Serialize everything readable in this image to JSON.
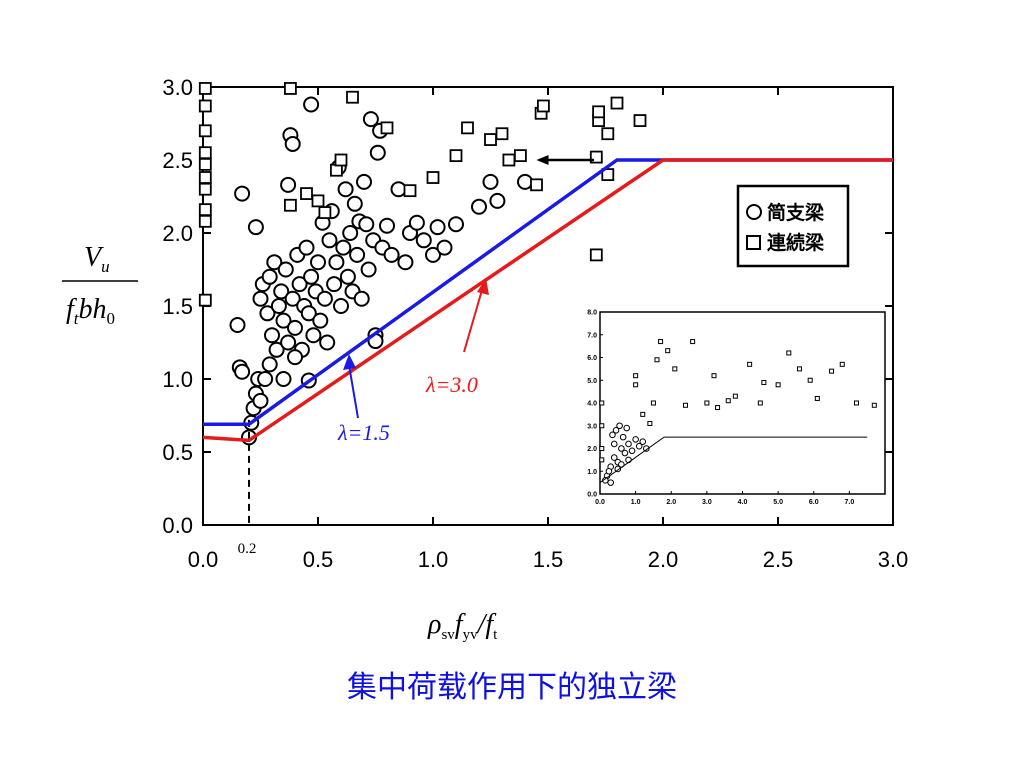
{
  "caption": "集中荷载作用下的独立梁",
  "chart_data": {
    "type": "scatter",
    "xlim": [
      0,
      3.0
    ],
    "ylim": [
      0,
      3.0
    ],
    "x_ticks": [
      "0.0",
      "0.5",
      "1.0",
      "1.5",
      "2.0",
      "2.5",
      "3.0"
    ],
    "y_ticks": [
      "0.0",
      "0.5",
      "1.0",
      "1.5",
      "2.0",
      "2.5",
      "3.0"
    ],
    "x_extra_tick": "0.2",
    "ylabel": {
      "num_main": "V",
      "num_sub": "u",
      "den_f": "f",
      "den_t": "t",
      "den_bh": "bh",
      "den_0": "0"
    },
    "xlabel": {
      "rho": "ρ",
      "sv": "sv",
      "f1": "f",
      "yv": "yv",
      "slash": "/",
      "f2": "f",
      "t": "t"
    },
    "legend": [
      {
        "marker": "circle",
        "label": "简支梁"
      },
      {
        "marker": "square",
        "label": "連続梁"
      }
    ],
    "legend_position": "right",
    "lines": [
      {
        "label": "λ=1.5",
        "color": "#1a1ae6",
        "points": [
          [
            0,
            0.69
          ],
          [
            0.2,
            0.69
          ],
          [
            1.8,
            2.5
          ],
          [
            3.0,
            2.5
          ]
        ]
      },
      {
        "label": "λ=3.0",
        "color": "#e61a1a",
        "points": [
          [
            0,
            0.6
          ],
          [
            0.2,
            0.58
          ],
          [
            2.0,
            2.5
          ],
          [
            3.0,
            2.5
          ]
        ]
      }
    ],
    "line_labels": [
      {
        "text": "λ=1.5",
        "ref": "λ=1.5"
      },
      {
        "text": "λ=3.0",
        "ref": "λ=3.0"
      }
    ],
    "arrow_level": 2.5,
    "arrow_from_x": 1.7,
    "arrow_to_x": 1.45,
    "dashed_vertical_x": 0.2,
    "series": [
      {
        "marker": "circle",
        "points": [
          [
            0.15,
            1.37
          ],
          [
            0.17,
            2.27
          ],
          [
            0.23,
            2.04
          ],
          [
            0.25,
            1.55
          ],
          [
            0.26,
            1.65
          ],
          [
            0.28,
            1.45
          ],
          [
            0.29,
            1.7
          ],
          [
            0.3,
            1.3
          ],
          [
            0.31,
            1.8
          ],
          [
            0.32,
            1.2
          ],
          [
            0.33,
            1.5
          ],
          [
            0.34,
            1.6
          ],
          [
            0.35,
            1.4
          ],
          [
            0.36,
            1.75
          ],
          [
            0.37,
            1.25
          ],
          [
            0.37,
            2.33
          ],
          [
            0.38,
            2.67
          ],
          [
            0.39,
            2.61
          ],
          [
            0.39,
            1.55
          ],
          [
            0.4,
            1.35
          ],
          [
            0.41,
            1.85
          ],
          [
            0.42,
            1.65
          ],
          [
            0.43,
            1.2
          ],
          [
            0.44,
            1.5
          ],
          [
            0.45,
            1.9
          ],
          [
            0.46,
            1.45
          ],
          [
            0.47,
            2.88
          ],
          [
            0.47,
            1.7
          ],
          [
            0.48,
            1.3
          ],
          [
            0.49,
            1.6
          ],
          [
            0.5,
            1.8
          ],
          [
            0.51,
            1.4
          ],
          [
            0.52,
            2.07
          ],
          [
            0.53,
            1.55
          ],
          [
            0.54,
            1.25
          ],
          [
            0.55,
            1.95
          ],
          [
            0.56,
            2.15
          ],
          [
            0.57,
            1.65
          ],
          [
            0.58,
            1.8
          ],
          [
            0.59,
            2.45
          ],
          [
            0.6,
            1.5
          ],
          [
            0.61,
            1.9
          ],
          [
            0.62,
            2.3
          ],
          [
            0.63,
            1.7
          ],
          [
            0.64,
            2.0
          ],
          [
            0.65,
            1.6
          ],
          [
            0.66,
            2.2
          ],
          [
            0.67,
            1.85
          ],
          [
            0.68,
            2.08
          ],
          [
            0.69,
            1.55
          ],
          [
            0.7,
            2.35
          ],
          [
            0.71,
            2.06
          ],
          [
            0.72,
            1.75
          ],
          [
            0.73,
            2.78
          ],
          [
            0.74,
            1.95
          ],
          [
            0.75,
            1.3
          ],
          [
            0.75,
            1.26
          ],
          [
            0.76,
            2.55
          ],
          [
            0.77,
            2.7
          ],
          [
            0.78,
            1.9
          ],
          [
            0.8,
            2.05
          ],
          [
            0.82,
            1.85
          ],
          [
            0.85,
            2.3
          ],
          [
            0.88,
            1.8
          ],
          [
            0.9,
            2.0
          ],
          [
            0.93,
            2.07
          ],
          [
            0.96,
            1.95
          ],
          [
            1.0,
            1.85
          ],
          [
            1.02,
            2.04
          ],
          [
            1.05,
            1.9
          ],
          [
            1.1,
            2.06
          ],
          [
            1.2,
            2.18
          ],
          [
            1.25,
            2.35
          ],
          [
            1.28,
            2.22
          ],
          [
            1.4,
            2.35
          ],
          [
            0.2,
            0.6
          ],
          [
            0.21,
            0.7
          ],
          [
            0.22,
            0.8
          ],
          [
            0.23,
            0.9
          ],
          [
            0.24,
            1.0
          ],
          [
            0.25,
            0.85
          ],
          [
            0.27,
            1.0
          ],
          [
            0.29,
            1.1
          ],
          [
            0.35,
            1.0
          ],
          [
            0.4,
            1.15
          ],
          [
            0.46,
            0.99
          ],
          [
            0.16,
            1.08
          ],
          [
            0.17,
            1.05
          ]
        ]
      },
      {
        "marker": "square",
        "points": [
          [
            0.01,
            2.99
          ],
          [
            0.01,
            2.87
          ],
          [
            0.01,
            2.7
          ],
          [
            0.01,
            2.55
          ],
          [
            0.01,
            2.47
          ],
          [
            0.01,
            2.38
          ],
          [
            0.01,
            2.3
          ],
          [
            0.01,
            2.16
          ],
          [
            0.01,
            2.08
          ],
          [
            0.01,
            1.54
          ],
          [
            0.38,
            2.99
          ],
          [
            0.38,
            2.19
          ],
          [
            0.65,
            2.93
          ],
          [
            0.8,
            2.72
          ],
          [
            0.9,
            2.29
          ],
          [
            1.0,
            2.38
          ],
          [
            1.1,
            2.53
          ],
          [
            1.15,
            2.72
          ],
          [
            1.25,
            2.64
          ],
          [
            1.3,
            2.68
          ],
          [
            1.33,
            2.5
          ],
          [
            1.38,
            2.53
          ],
          [
            1.45,
            2.33
          ],
          [
            1.47,
            2.82
          ],
          [
            1.48,
            2.87
          ],
          [
            1.72,
            2.77
          ],
          [
            1.72,
            2.83
          ],
          [
            1.76,
            2.68
          ],
          [
            1.8,
            2.89
          ],
          [
            1.9,
            2.77
          ],
          [
            1.71,
            2.52
          ],
          [
            1.76,
            2.4
          ],
          [
            1.71,
            1.85
          ],
          [
            0.45,
            2.27
          ],
          [
            0.5,
            2.22
          ],
          [
            0.53,
            2.14
          ],
          [
            0.58,
            2.43
          ],
          [
            0.6,
            2.5
          ]
        ]
      }
    ],
    "inset": {
      "type": "scatter",
      "xlim": [
        0,
        8.0
      ],
      "ylim": [
        0,
        8.0
      ],
      "x_ticks": [
        "0.0",
        "1.0",
        "2.0",
        "3.0",
        "4.0",
        "5.0",
        "6.0",
        "7.0"
      ],
      "y_ticks": [
        "0.0",
        "1.0",
        "2.0",
        "3.0",
        "4.0",
        "5.0",
        "6.0",
        "7.0",
        "8.0"
      ],
      "cap_line": [
        [
          0,
          0.5
        ],
        [
          1.8,
          2.5
        ],
        [
          7.5,
          2.5
        ]
      ],
      "series": [
        {
          "marker": "circle",
          "points": [
            [
              0.2,
              0.8
            ],
            [
              0.3,
              1.2
            ],
            [
              0.4,
              1.6
            ],
            [
              0.5,
              1.4
            ],
            [
              0.6,
              2.0
            ],
            [
              0.7,
              1.8
            ],
            [
              0.8,
              2.2
            ],
            [
              0.9,
              1.9
            ],
            [
              1.0,
              2.4
            ],
            [
              1.1,
              2.1
            ],
            [
              0.35,
              2.6
            ],
            [
              0.45,
              2.8
            ],
            [
              0.55,
              3.0
            ],
            [
              0.65,
              2.5
            ],
            [
              0.75,
              2.9
            ],
            [
              0.25,
              1.0
            ],
            [
              0.15,
              0.6
            ],
            [
              0.5,
              1.1
            ],
            [
              0.8,
              1.5
            ],
            [
              1.2,
              2.3
            ],
            [
              1.3,
              2.0
            ],
            [
              0.4,
              2.2
            ],
            [
              0.6,
              1.3
            ],
            [
              0.3,
              0.5
            ]
          ]
        },
        {
          "marker": "square",
          "points": [
            [
              0.05,
              2.0
            ],
            [
              0.05,
              3.0
            ],
            [
              0.05,
              4.0
            ],
            [
              0.05,
              1.5
            ],
            [
              1.0,
              4.8
            ],
            [
              1.0,
              5.2
            ],
            [
              1.5,
              4.0
            ],
            [
              1.6,
              5.9
            ],
            [
              1.7,
              6.7
            ],
            [
              1.9,
              6.3
            ],
            [
              2.1,
              5.5
            ],
            [
              2.4,
              3.9
            ],
            [
              2.6,
              6.7
            ],
            [
              3.0,
              4.0
            ],
            [
              3.3,
              3.8
            ],
            [
              3.6,
              4.1
            ],
            [
              3.8,
              4.3
            ],
            [
              4.2,
              5.7
            ],
            [
              4.6,
              4.9
            ],
            [
              5.0,
              4.8
            ],
            [
              5.3,
              6.2
            ],
            [
              5.6,
              5.5
            ],
            [
              5.9,
              5.0
            ],
            [
              6.1,
              4.2
            ],
            [
              6.5,
              5.4
            ],
            [
              6.8,
              5.7
            ],
            [
              7.2,
              4.0
            ],
            [
              7.7,
              3.9
            ],
            [
              4.5,
              4.0
            ],
            [
              3.2,
              5.2
            ],
            [
              1.4,
              3.1
            ],
            [
              1.2,
              3.5
            ]
          ]
        }
      ]
    }
  }
}
